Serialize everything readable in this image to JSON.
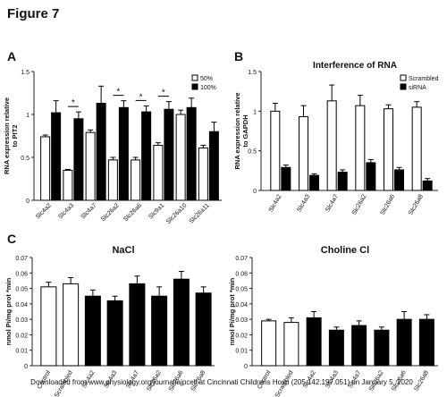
{
  "figure": {
    "title": "Figure 7"
  },
  "panels": {
    "a": "A",
    "b": "B",
    "c": "C"
  },
  "watermark": "Downloaded from www.physiology.org/journal/ajpcell at Cincinnati Childrens Hosp (205.142.197.051) on January 5, 2020",
  "chart_data": [
    {
      "id": "A",
      "type": "bar",
      "ylabel": "RNA expression relative to PIT2",
      "ylim": [
        0,
        1.5
      ],
      "yticks": [
        0,
        0.5,
        1,
        1.5
      ],
      "categories": [
        "Slc4a2",
        "Slc4a3",
        "Slc4a7",
        "Slc26a2",
        "Slc26a6",
        "Slc9a1",
        "Slc26a10",
        "Slc26a11"
      ],
      "series": [
        {
          "name": "50%",
          "color": "#ffffff",
          "values": [
            0.74,
            0.35,
            0.79,
            0.47,
            0.47,
            0.64,
            1.0,
            0.61
          ],
          "err": [
            0.02,
            0.01,
            0.03,
            0.03,
            0.03,
            0.03,
            0.05,
            0.03
          ]
        },
        {
          "name": "100%",
          "color": "#000000",
          "values": [
            1.02,
            0.95,
            1.13,
            1.08,
            1.03,
            1.06,
            1.08,
            0.8
          ],
          "err": [
            0.14,
            0.08,
            0.2,
            0.08,
            0.07,
            0.09,
            0.11,
            0.11
          ]
        }
      ],
      "significance": [
        {
          "category": "Slc4a3",
          "label": "*"
        },
        {
          "category": "Slc26a2",
          "label": "*"
        },
        {
          "category": "Slc26a6",
          "label": "*"
        },
        {
          "category": "Slc9a1",
          "label": "*"
        }
      ],
      "legend": "top-right"
    },
    {
      "id": "B",
      "type": "bar",
      "title": "Interference of RNA",
      "ylabel": "RNA expression relative to GAPDH",
      "ylim": [
        0,
        1.5
      ],
      "yticks": [
        0,
        0.5,
        1,
        1.5
      ],
      "categories": [
        "Slc4a2",
        "Slc4a3",
        "Slc4a7",
        "Slc26a2",
        "Slc26a6",
        "Slc26a8"
      ],
      "series": [
        {
          "name": "Scrambled",
          "color": "#ffffff",
          "values": [
            1.0,
            0.93,
            1.13,
            1.07,
            1.03,
            1.05
          ],
          "err": [
            0.1,
            0.14,
            0.2,
            0.13,
            0.05,
            0.07
          ]
        },
        {
          "name": "siRNA",
          "color": "#000000",
          "values": [
            0.29,
            0.19,
            0.23,
            0.35,
            0.26,
            0.12
          ],
          "err": [
            0.03,
            0.02,
            0.03,
            0.04,
            0.03,
            0.03
          ]
        }
      ],
      "legend": "top-right"
    },
    {
      "id": "C1",
      "type": "bar",
      "title": "NaCl",
      "ylabel": "nmol Pi/mg prot *min",
      "ylim": [
        0,
        0.07
      ],
      "yticks": [
        0,
        0.01,
        0.02,
        0.03,
        0.04,
        0.05,
        0.06,
        0.07
      ],
      "categories": [
        "Control",
        "Scrambled",
        "Slc4a2",
        "Slc4a3",
        "Slc4a7",
        "Slc26a2",
        "Slc26a6",
        "Slc26a8"
      ],
      "values": [
        0.051,
        0.053,
        0.045,
        0.042,
        0.053,
        0.045,
        0.056,
        0.047
      ],
      "err": [
        0.003,
        0.004,
        0.004,
        0.003,
        0.005,
        0.006,
        0.005,
        0.004
      ],
      "colors": [
        "#ffffff",
        "#ffffff",
        "#000000",
        "#000000",
        "#000000",
        "#000000",
        "#000000",
        "#000000"
      ]
    },
    {
      "id": "C2",
      "type": "bar",
      "title": "Choline Cl",
      "ylabel": "nmol Pi/mg prot *min",
      "ylim": [
        0,
        0.07
      ],
      "yticks": [
        0,
        0.01,
        0.02,
        0.03,
        0.04,
        0.05,
        0.06,
        0.07
      ],
      "categories": [
        "Control",
        "Scrambled",
        "Slc4a2",
        "Slc4a3",
        "Slc4a7",
        "Slc26a2",
        "Slc26a6",
        "Slc26a8"
      ],
      "values": [
        0.029,
        0.028,
        0.031,
        0.023,
        0.026,
        0.023,
        0.03,
        0.03
      ],
      "err": [
        0.001,
        0.003,
        0.004,
        0.002,
        0.003,
        0.002,
        0.005,
        0.003
      ],
      "colors": [
        "#ffffff",
        "#ffffff",
        "#000000",
        "#000000",
        "#000000",
        "#000000",
        "#000000",
        "#000000"
      ]
    }
  ]
}
